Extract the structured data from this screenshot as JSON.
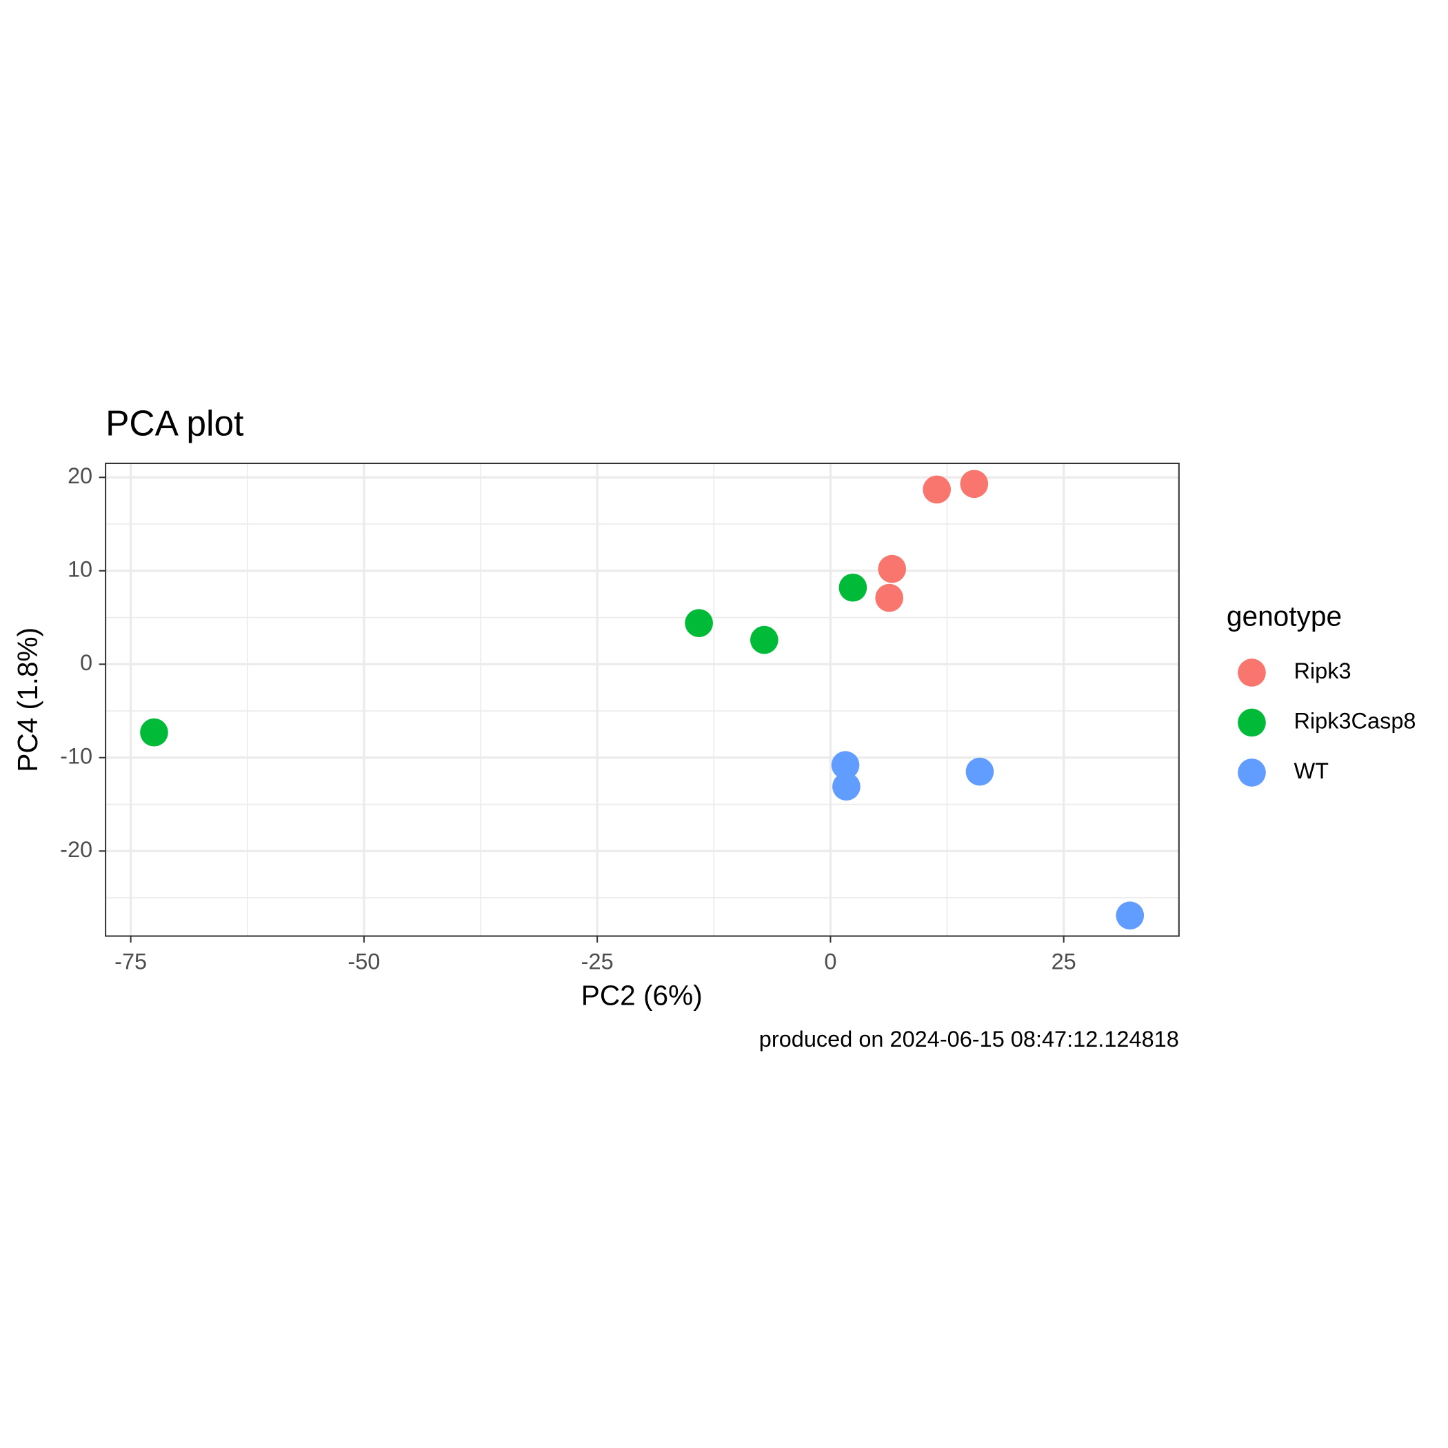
{
  "chart_data": {
    "type": "scatter",
    "title": "PCA plot",
    "x_label": "PC2 (6%)",
    "y_label": "PC4 (1.8%)",
    "caption": "produced on 2024-06-15 08:47:12.124818",
    "legend_title": "genotype",
    "legend_position": "right",
    "grid": true,
    "xlim": [
      -77.7,
      37.35
    ],
    "ylim": [
      -29.1,
      21.5
    ],
    "xticks": [
      -75,
      -50,
      -25,
      0,
      25
    ],
    "yticks": [
      -20,
      -10,
      0,
      10,
      20
    ],
    "series": [
      {
        "name": "Ripk3",
        "color": "#F8766D",
        "x": [
          11.4,
          15.4,
          6.6,
          6.3
        ],
        "values": [
          18.7,
          19.3,
          10.2,
          7.1
        ]
      },
      {
        "name": "Ripk3Casp8",
        "color": "#00BA38",
        "x": [
          2.4,
          -14.1,
          -7.1,
          -72.5
        ],
        "values": [
          8.2,
          4.4,
          2.6,
          -7.3
        ]
      },
      {
        "name": "WT",
        "color": "#619CFF",
        "x": [
          1.6,
          1.7,
          16.0,
          32.1
        ],
        "values": [
          -10.8,
          -13.1,
          -11.5,
          -26.9
        ]
      }
    ]
  }
}
